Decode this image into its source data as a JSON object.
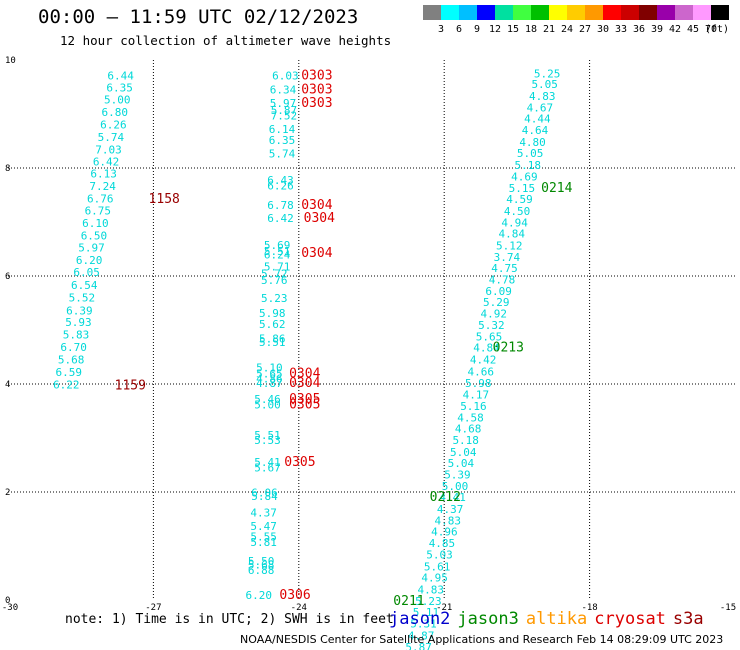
{
  "header": {
    "title": "00:00 – 11:59 UTC 02/12/2023",
    "subtitle": "12 hour collection of altimeter wave heights"
  },
  "color_scale": {
    "unit": "(ft)",
    "labels": [
      "3",
      "6",
      "9",
      "12",
      "15",
      "18",
      "21",
      "24",
      "27",
      "30",
      "33",
      "36",
      "39",
      "42",
      "45",
      "70"
    ],
    "colors": [
      "#808080",
      "#00ffff",
      "#00bfff",
      "#0000ff",
      "#00e0a0",
      "#40ff40",
      "#00c000",
      "#ffff00",
      "#ffcc00",
      "#ff9900",
      "#ff0000",
      "#cc0000",
      "#800000",
      "#9900aa",
      "#cc66cc",
      "#ff99ff",
      "#000000"
    ]
  },
  "note": "note: 1) Time is in UTC; 2) SWH is in feet",
  "satellites": [
    {
      "name": "jason2",
      "color": "#0000cc"
    },
    {
      "name": "jason3",
      "color": "#008800"
    },
    {
      "name": "altika",
      "color": "#ff9900"
    },
    {
      "name": "cryosat",
      "color": "#dd0000"
    },
    {
      "name": "s3a",
      "color": "#990000"
    }
  ],
  "footer": "NOAA/NESDIS Center for Satellite Applications and Research   Feb 14 08:29:09 UTC 2023",
  "chart_data": {
    "type": "scatter",
    "xlim": [
      -30,
      -15
    ],
    "ylim": [
      0,
      10
    ],
    "x_ticks": [
      "-30",
      "-27",
      "-24",
      "-21",
      "-18",
      "-15"
    ],
    "y_ticks": [
      "0",
      "2",
      "4",
      "6",
      "8",
      "10"
    ],
    "grid": true,
    "wave_heights": [
      {
        "x": -27.95,
        "y": 9.64,
        "v": "6.44"
      },
      {
        "x": -27.97,
        "y": 9.42,
        "v": "6.35"
      },
      {
        "x": -28.02,
        "y": 9.19,
        "v": "5.00"
      },
      {
        "x": -28.07,
        "y": 8.96,
        "v": "6.80"
      },
      {
        "x": -28.1,
        "y": 8.73,
        "v": "6.26"
      },
      {
        "x": -28.15,
        "y": 8.5,
        "v": "5.74"
      },
      {
        "x": -28.2,
        "y": 8.27,
        "v": "7.03"
      },
      {
        "x": -28.25,
        "y": 8.05,
        "v": "6.42"
      },
      {
        "x": -28.3,
        "y": 7.82,
        "v": "6.13"
      },
      {
        "x": -28.32,
        "y": 7.59,
        "v": "7.24"
      },
      {
        "x": -28.37,
        "y": 7.36,
        "v": "6.76"
      },
      {
        "x": -28.42,
        "y": 7.14,
        "v": "6.75"
      },
      {
        "x": -28.47,
        "y": 6.91,
        "v": "6.10"
      },
      {
        "x": -28.5,
        "y": 6.68,
        "v": "6.50"
      },
      {
        "x": -28.55,
        "y": 6.45,
        "v": "5.97"
      },
      {
        "x": -28.6,
        "y": 6.22,
        "v": "6.20"
      },
      {
        "x": -28.65,
        "y": 6.0,
        "v": "6.05"
      },
      {
        "x": -28.7,
        "y": 5.76,
        "v": "6.54"
      },
      {
        "x": -28.75,
        "y": 5.53,
        "v": "5.52"
      },
      {
        "x": -28.8,
        "y": 5.29,
        "v": "6.39"
      },
      {
        "x": -28.82,
        "y": 5.07,
        "v": "5.93"
      },
      {
        "x": -28.87,
        "y": 4.84,
        "v": "5.83"
      },
      {
        "x": -28.92,
        "y": 4.61,
        "v": "6.70"
      },
      {
        "x": -28.97,
        "y": 4.38,
        "v": "5.68"
      },
      {
        "x": -29.02,
        "y": 4.15,
        "v": "6.59"
      },
      {
        "x": -29.07,
        "y": 3.92,
        "v": "6.22"
      },
      {
        "x": -24.55,
        "y": 9.64,
        "v": "6.03"
      },
      {
        "x": -24.6,
        "y": 9.38,
        "v": "6.34"
      },
      {
        "x": -24.6,
        "y": 9.13,
        "v": "5.97"
      },
      {
        "x": -24.58,
        "y": 9.0,
        "v": "5.87"
      },
      {
        "x": -24.58,
        "y": 8.9,
        "v": "7.52"
      },
      {
        "x": -24.62,
        "y": 8.65,
        "v": "6.14"
      },
      {
        "x": -24.62,
        "y": 8.44,
        "v": "6.35"
      },
      {
        "x": -24.62,
        "y": 8.19,
        "v": "5.74"
      },
      {
        "x": -24.65,
        "y": 7.7,
        "v": "6.43"
      },
      {
        "x": -24.65,
        "y": 7.6,
        "v": "6.26"
      },
      {
        "x": -24.65,
        "y": 7.24,
        "v": "6.78"
      },
      {
        "x": -24.65,
        "y": 7.0,
        "v": "6.42"
      },
      {
        "x": -24.72,
        "y": 6.5,
        "v": "5.69"
      },
      {
        "x": -24.72,
        "y": 6.39,
        "v": "5.51"
      },
      {
        "x": -24.72,
        "y": 6.32,
        "v": "6.24"
      },
      {
        "x": -24.72,
        "y": 6.1,
        "v": "5.71"
      },
      {
        "x": -24.78,
        "y": 5.97,
        "v": "5.72"
      },
      {
        "x": -24.78,
        "y": 5.85,
        "v": "5.76"
      },
      {
        "x": -24.78,
        "y": 5.52,
        "v": "5.23"
      },
      {
        "x": -24.82,
        "y": 5.24,
        "v": "5.98"
      },
      {
        "x": -24.82,
        "y": 5.04,
        "v": "5.62"
      },
      {
        "x": -24.82,
        "y": 4.77,
        "v": "5.86"
      },
      {
        "x": -24.82,
        "y": 4.7,
        "v": "5.51"
      },
      {
        "x": -24.88,
        "y": 4.23,
        "v": "5.10"
      },
      {
        "x": -24.88,
        "y": 4.12,
        "v": "5.65"
      },
      {
        "x": -24.88,
        "y": 4.03,
        "v": "4.86"
      },
      {
        "x": -24.88,
        "y": 3.94,
        "v": "4.87"
      },
      {
        "x": -24.92,
        "y": 3.65,
        "v": "5.46"
      },
      {
        "x": -24.92,
        "y": 3.55,
        "v": "5.00"
      },
      {
        "x": -24.92,
        "y": 2.98,
        "v": "5.51"
      },
      {
        "x": -24.92,
        "y": 2.89,
        "v": "5.53"
      },
      {
        "x": -24.92,
        "y": 2.48,
        "v": "5.41"
      },
      {
        "x": -24.92,
        "y": 2.38,
        "v": "5.67"
      },
      {
        "x": -24.98,
        "y": 1.92,
        "v": "6.06"
      },
      {
        "x": -24.98,
        "y": 1.85,
        "v": "5.84"
      },
      {
        "x": -25.0,
        "y": 1.55,
        "v": "4.37"
      },
      {
        "x": -25.0,
        "y": 1.3,
        "v": "5.47"
      },
      {
        "x": -25.0,
        "y": 1.1,
        "v": "5.55"
      },
      {
        "x": -25.0,
        "y": 1.0,
        "v": "5.81"
      },
      {
        "x": -25.05,
        "y": 0.65,
        "v": "5.50"
      },
      {
        "x": -25.05,
        "y": 0.58,
        "v": "5.68"
      },
      {
        "x": -25.05,
        "y": 0.48,
        "v": "6.88"
      },
      {
        "x": -25.1,
        "y": 0.02,
        "v": "6.20"
      },
      {
        "x": -19.15,
        "y": 9.68,
        "v": "5.25"
      },
      {
        "x": -19.2,
        "y": 9.48,
        "v": "5.05"
      },
      {
        "x": -19.25,
        "y": 9.26,
        "v": "4.83"
      },
      {
        "x": -19.3,
        "y": 9.05,
        "v": "4.67"
      },
      {
        "x": -19.35,
        "y": 8.84,
        "v": "4.44"
      },
      {
        "x": -19.4,
        "y": 8.63,
        "v": "4.64"
      },
      {
        "x": -19.45,
        "y": 8.41,
        "v": "4.80"
      },
      {
        "x": -19.5,
        "y": 8.2,
        "v": "5.05"
      },
      {
        "x": -19.55,
        "y": 7.98,
        "v": "5.18"
      },
      {
        "x": -19.62,
        "y": 7.77,
        "v": "4.69"
      },
      {
        "x": -19.67,
        "y": 7.56,
        "v": "5.15"
      },
      {
        "x": -19.72,
        "y": 7.35,
        "v": "4.59"
      },
      {
        "x": -19.77,
        "y": 7.13,
        "v": "4.50"
      },
      {
        "x": -19.82,
        "y": 6.92,
        "v": "4.94"
      },
      {
        "x": -19.88,
        "y": 6.71,
        "v": "4.84"
      },
      {
        "x": -19.93,
        "y": 6.49,
        "v": "5.12"
      },
      {
        "x": -19.98,
        "y": 6.28,
        "v": "3.74"
      },
      {
        "x": -20.03,
        "y": 6.07,
        "v": "4.75"
      },
      {
        "x": -20.08,
        "y": 5.86,
        "v": "4.78"
      },
      {
        "x": -20.15,
        "y": 5.65,
        "v": "6.09"
      },
      {
        "x": -20.2,
        "y": 5.44,
        "v": "5.29"
      },
      {
        "x": -20.25,
        "y": 5.23,
        "v": "4.92"
      },
      {
        "x": -20.3,
        "y": 5.02,
        "v": "5.32"
      },
      {
        "x": -20.35,
        "y": 4.81,
        "v": "5.65"
      },
      {
        "x": -20.4,
        "y": 4.6,
        "v": "4.84"
      },
      {
        "x": -20.47,
        "y": 4.38,
        "v": "4.42"
      },
      {
        "x": -20.52,
        "y": 4.16,
        "v": "4.66"
      },
      {
        "x": -20.57,
        "y": 3.94,
        "v": "5.98"
      },
      {
        "x": -20.62,
        "y": 3.73,
        "v": "4.17"
      },
      {
        "x": -20.67,
        "y": 3.52,
        "v": "5.16"
      },
      {
        "x": -20.73,
        "y": 3.31,
        "v": "4.58"
      },
      {
        "x": -20.78,
        "y": 3.1,
        "v": "4.68"
      },
      {
        "x": -20.83,
        "y": 2.89,
        "v": "5.18"
      },
      {
        "x": -20.88,
        "y": 2.67,
        "v": "5.04"
      },
      {
        "x": -20.93,
        "y": 2.46,
        "v": "5.04"
      },
      {
        "x": -21.0,
        "y": 2.25,
        "v": "5.39"
      },
      {
        "x": -21.05,
        "y": 2.04,
        "v": "5.00"
      },
      {
        "x": -21.1,
        "y": 1.83,
        "v": "4.41"
      },
      {
        "x": -21.15,
        "y": 1.61,
        "v": "4.37"
      },
      {
        "x": -21.2,
        "y": 1.4,
        "v": "4.83"
      },
      {
        "x": -21.27,
        "y": 1.19,
        "v": "4.96"
      },
      {
        "x": -21.32,
        "y": 0.98,
        "v": "4.85"
      },
      {
        "x": -21.37,
        "y": 0.77,
        "v": "5.03"
      },
      {
        "x": -21.42,
        "y": 0.55,
        "v": "5.61"
      },
      {
        "x": -21.47,
        "y": 0.34,
        "v": "4.95"
      },
      {
        "x": -21.55,
        "y": 0.12,
        "v": "4.83"
      },
      {
        "x": -21.6,
        "y": -0.09,
        "v": "5.23"
      },
      {
        "x": -21.65,
        "y": -0.3,
        "v": "5.11"
      },
      {
        "x": -21.7,
        "y": -0.51,
        "v": "5.31"
      },
      {
        "x": -21.75,
        "y": -0.73,
        "v": "4.87"
      },
      {
        "x": -21.8,
        "y": -0.94,
        "v": "5.87"
      }
    ],
    "time_labels": [
      {
        "x": -27.1,
        "y": 7.35,
        "t": "1158",
        "sat": "s3a"
      },
      {
        "x": -27.8,
        "y": 3.9,
        "t": "1159",
        "sat": "s3a"
      },
      {
        "x": -23.95,
        "y": 9.64,
        "t": "0303",
        "sat": "cryosat"
      },
      {
        "x": -23.95,
        "y": 9.38,
        "t": "0303",
        "sat": "cryosat"
      },
      {
        "x": -23.95,
        "y": 9.13,
        "t": "0303",
        "sat": "cryosat"
      },
      {
        "x": -23.95,
        "y": 7.24,
        "t": "0304",
        "sat": "cryosat"
      },
      {
        "x": -23.9,
        "y": 7.0,
        "t": "0304",
        "sat": "cryosat"
      },
      {
        "x": -23.95,
        "y": 6.35,
        "t": "0304",
        "sat": "cryosat"
      },
      {
        "x": -24.2,
        "y": 4.12,
        "t": "0304",
        "sat": "cryosat"
      },
      {
        "x": -24.2,
        "y": 3.94,
        "t": "0304",
        "sat": "cryosat"
      },
      {
        "x": -24.2,
        "y": 3.65,
        "t": "0305",
        "sat": "cryosat"
      },
      {
        "x": -24.2,
        "y": 3.55,
        "t": "0305",
        "sat": "cryosat"
      },
      {
        "x": -24.3,
        "y": 2.48,
        "t": "0305",
        "sat": "cryosat"
      },
      {
        "x": -24.4,
        "y": 0.02,
        "t": "0306",
        "sat": "cryosat"
      },
      {
        "x": -19.0,
        "y": 7.56,
        "t": "0214",
        "sat": "jason3"
      },
      {
        "x": -20.0,
        "y": 4.6,
        "t": "0213",
        "sat": "jason3"
      },
      {
        "x": -21.3,
        "y": 1.83,
        "t": "0212",
        "sat": "jason3"
      },
      {
        "x": -22.05,
        "y": -0.09,
        "t": "0211",
        "sat": "jason3"
      }
    ]
  }
}
